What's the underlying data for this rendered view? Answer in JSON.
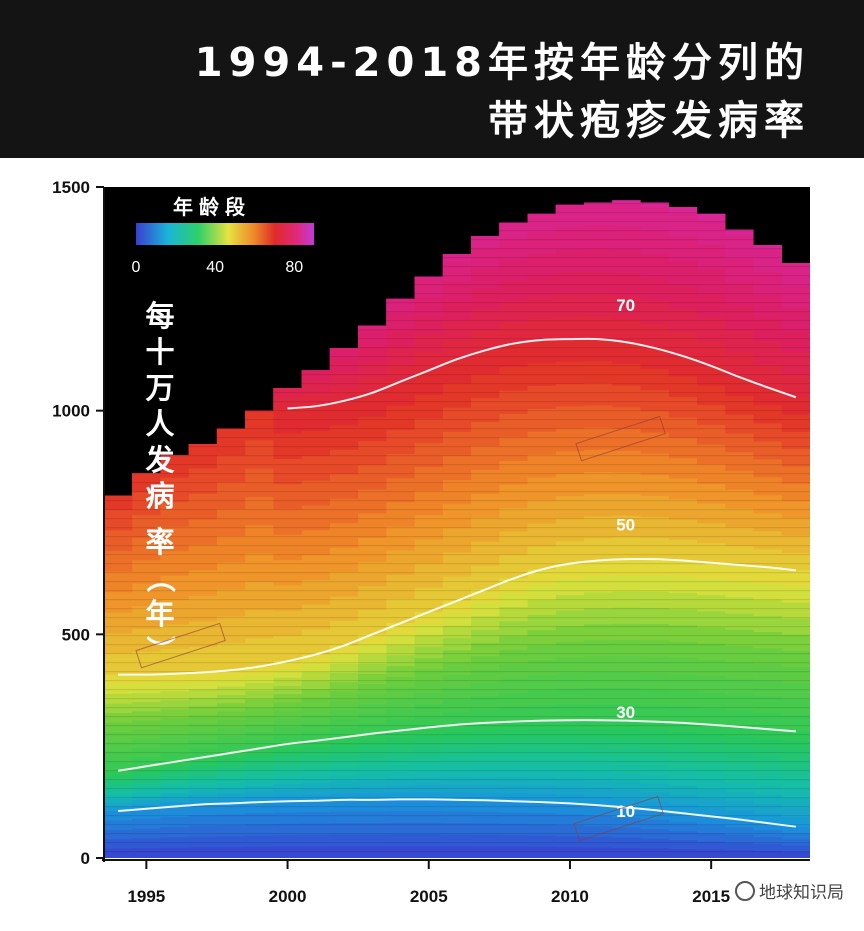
{
  "header": {
    "title_line1": "1994-2018年按年龄分列的",
    "title_line2": "带状疱疹发病率"
  },
  "brand": {
    "text": "地球知识局",
    "icon": "wechat-icon"
  },
  "chart_data": {
    "type": "area",
    "title": "1994-2018年按年龄分列的带状疱疹发病率",
    "ylabel": "每十万人发病率（年）",
    "xlabel": "",
    "xlim": [
      1993.5,
      2018.5
    ],
    "ylim": [
      0,
      1500
    ],
    "x_ticks": [
      "1995",
      "2000",
      "2005",
      "2010",
      "2015"
    ],
    "y_ticks": [
      "0",
      "500",
      "1000",
      "1500"
    ],
    "grid": false,
    "colormap": "rainbow (blue → green → yellow → red → magenta)",
    "legend": {
      "title": "年龄段",
      "placement": "top-left",
      "ticks": [
        "0",
        "40",
        "80"
      ],
      "range": [
        0,
        90
      ]
    },
    "x": [
      1994,
      1995,
      1996,
      1997,
      1998,
      1999,
      2000,
      2001,
      2002,
      2003,
      2004,
      2005,
      2006,
      2007,
      2008,
      2009,
      2010,
      2011,
      2012,
      2013,
      2014,
      2015,
      2016,
      2017,
      2018
    ],
    "total": [
      810,
      860,
      900,
      925,
      960,
      1000,
      1050,
      1090,
      1140,
      1190,
      1250,
      1300,
      1350,
      1390,
      1420,
      1440,
      1460,
      1465,
      1470,
      1465,
      1455,
      1440,
      1405,
      1370,
      1330
    ],
    "series": [
      {
        "name": "10",
        "values": [
          105,
          110,
          115,
          120,
          122,
          125,
          127,
          128,
          130,
          130,
          131,
          131,
          130,
          129,
          127,
          125,
          122,
          118,
          113,
          107,
          100,
          93,
          86,
          78,
          70
        ]
      },
      {
        "name": "30",
        "values": [
          195,
          205,
          215,
          225,
          235,
          245,
          255,
          262,
          270,
          278,
          285,
          292,
          298,
          302,
          305,
          307,
          308,
          308,
          307,
          305,
          302,
          298,
          293,
          288,
          283
        ]
      },
      {
        "name": "50",
        "values": [
          410,
          410,
          412,
          415,
          420,
          428,
          440,
          455,
          475,
          500,
          525,
          550,
          575,
          600,
          625,
          645,
          658,
          665,
          668,
          668,
          665,
          660,
          655,
          650,
          643
        ]
      },
      {
        "name": "70",
        "values": [
          null,
          null,
          null,
          null,
          null,
          null,
          1005,
          1010,
          1022,
          1040,
          1065,
          1090,
          1115,
          1135,
          1150,
          1158,
          1160,
          1160,
          1153,
          1140,
          1122,
          1100,
          1075,
          1052,
          1030
        ]
      }
    ]
  }
}
